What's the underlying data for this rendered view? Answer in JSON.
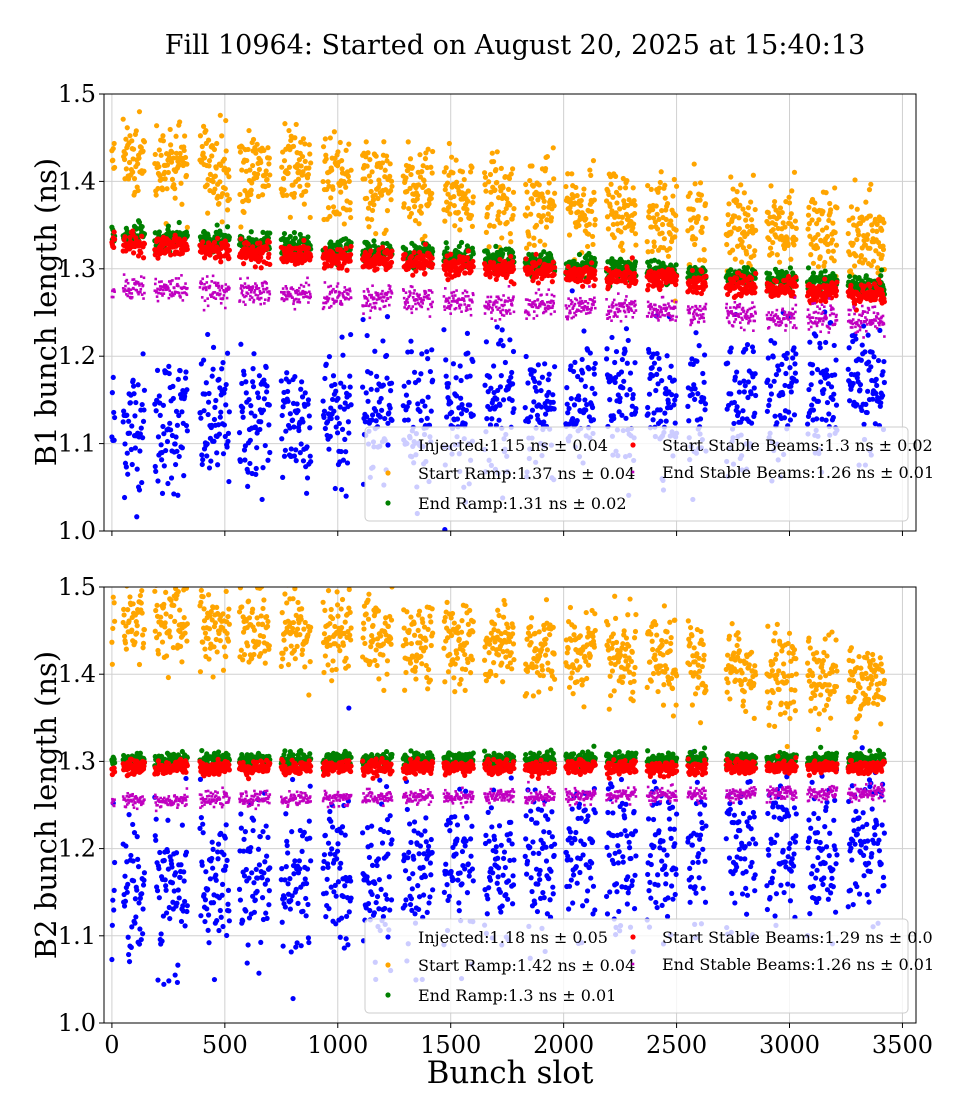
{
  "chart_data": {
    "title": "Fill 10964: Started on August 20, 2025 at 15:40:13",
    "xlabel": "Bunch slot",
    "xlim": [
      -35,
      3560
    ],
    "xticks": [
      0,
      500,
      1000,
      1500,
      2000,
      2500,
      3000,
      3500
    ],
    "yticks": [
      1.0,
      1.1,
      1.2,
      1.3,
      1.4,
      1.5
    ],
    "grid": true,
    "legend_placement": "lower-right",
    "bunch_trains": [
      [
        0,
        12
      ],
      [
        50,
        145
      ],
      [
        190,
        335
      ],
      [
        390,
        520
      ],
      [
        565,
        700
      ],
      [
        750,
        880
      ],
      [
        935,
        1060
      ],
      [
        1110,
        1240
      ],
      [
        1290,
        1420
      ],
      [
        1470,
        1600
      ],
      [
        1650,
        1780
      ],
      [
        1830,
        1960
      ],
      [
        2010,
        2140
      ],
      [
        2190,
        2320
      ],
      [
        2370,
        2500
      ],
      [
        2550,
        2630
      ],
      [
        2720,
        2850
      ],
      [
        2900,
        3030
      ],
      [
        3080,
        3210
      ],
      [
        3260,
        3420
      ]
    ],
    "panels": [
      {
        "type": "scatter",
        "ylabel": "B1 bunch length (ns)",
        "ylim": [
          1.0,
          1.5
        ],
        "series": [
          {
            "name": "Injected:1.15 ns ± 0.04",
            "color": "#0000ff",
            "marker": "circle",
            "start": 1.12,
            "end": 1.16,
            "std": 0.04
          },
          {
            "name": "Start Ramp:1.37 ns ± 0.04",
            "color": "#ffa500",
            "marker": "circle",
            "start": 1.43,
            "end": 1.33,
            "std": 0.025
          },
          {
            "name": "End Ramp:1.31 ns ± 0.02",
            "color": "#008000",
            "marker": "circle",
            "start": 1.34,
            "end": 1.28,
            "std": 0.006
          },
          {
            "name": "Start Stable Beams:1.3 ns ± 0.02",
            "color": "#ff0000",
            "marker": "circle",
            "start": 1.33,
            "end": 1.27,
            "std": 0.006
          },
          {
            "name": "End Stable Beams:1.26 ns ± 0.01",
            "color": "#c000c0",
            "marker": "square",
            "start": 1.28,
            "end": 1.24,
            "std": 0.007
          }
        ]
      },
      {
        "type": "scatter",
        "ylabel": "B2 bunch length (ns)",
        "ylim": [
          1.0,
          1.5
        ],
        "series": [
          {
            "name": "Injected:1.18 ns ± 0.05",
            "color": "#0000ff",
            "marker": "circle",
            "start": 1.15,
            "end": 1.21,
            "std": 0.045
          },
          {
            "name": "Start Ramp:1.42 ns ± 0.04",
            "color": "#ffa500",
            "marker": "circle",
            "start": 1.47,
            "end": 1.39,
            "std": 0.025
          },
          {
            "name": "End Ramp:1.3 ns ± 0.01",
            "color": "#008000",
            "marker": "circle",
            "start": 1.302,
            "end": 1.302,
            "std": 0.004
          },
          {
            "name": "Start Stable Beams:1.29 ns ± 0.0",
            "color": "#ff0000",
            "marker": "circle",
            "start": 1.293,
            "end": 1.293,
            "std": 0.004
          },
          {
            "name": "End Stable Beams:1.26 ns ± 0.01",
            "color": "#c000c0",
            "marker": "square",
            "start": 1.255,
            "end": 1.264,
            "std": 0.004
          }
        ]
      }
    ]
  }
}
